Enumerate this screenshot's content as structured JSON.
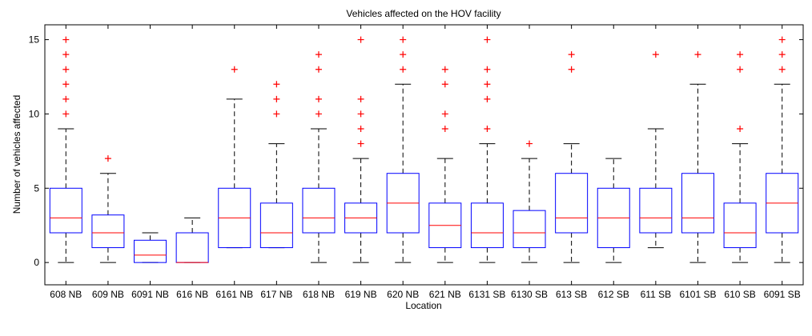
{
  "chart_data": {
    "type": "boxplot",
    "title": "Vehicles affected on the HOV facility",
    "xlabel": "Location",
    "ylabel": "Number of vehicles affected",
    "ylim": [
      -1.5,
      16
    ],
    "yticks": [
      0,
      5,
      10,
      15
    ],
    "grid": false,
    "colors": {
      "box": "#0000ff",
      "median": "#ff0000",
      "whisker": "#000000",
      "outlier": "#ff0000",
      "axis": "#000000"
    },
    "categories": [
      "608 NB",
      "609 NB",
      "6091 NB",
      "616 NB",
      "6161 NB",
      "617 NB",
      "618 NB",
      "619 NB",
      "620 NB",
      "621 NB",
      "6131 SB",
      "6130 SB",
      "613 SB",
      "612 SB",
      "611 SB",
      "6101 SB",
      "610 SB",
      "6091 SB"
    ],
    "boxes": [
      {
        "whisker_low": 0,
        "q1": 2,
        "median": 3,
        "q3": 5,
        "whisker_high": 9,
        "outliers": [
          10,
          11,
          12,
          13,
          14,
          15
        ]
      },
      {
        "whisker_low": 0,
        "q1": 1,
        "median": 2,
        "q3": 3.2,
        "whisker_high": 6,
        "outliers": [
          7
        ]
      },
      {
        "whisker_low": 0,
        "q1": 0,
        "median": 0.5,
        "q3": 1.5,
        "whisker_high": 2,
        "outliers": []
      },
      {
        "whisker_low": 0,
        "q1": 0,
        "median": 0,
        "q3": 2,
        "whisker_high": 3,
        "outliers": []
      },
      {
        "whisker_low": 1,
        "q1": 1,
        "median": 3,
        "q3": 5,
        "whisker_high": 11,
        "outliers": [
          13
        ]
      },
      {
        "whisker_low": 1,
        "q1": 1,
        "median": 2,
        "q3": 4,
        "whisker_high": 8,
        "outliers": [
          10,
          11,
          12
        ]
      },
      {
        "whisker_low": 0,
        "q1": 2,
        "median": 3,
        "q3": 5,
        "whisker_high": 9,
        "outliers": [
          10,
          11,
          13,
          14
        ]
      },
      {
        "whisker_low": 0,
        "q1": 2,
        "median": 3,
        "q3": 4,
        "whisker_high": 7,
        "outliers": [
          8,
          9,
          10,
          11,
          15
        ]
      },
      {
        "whisker_low": 0,
        "q1": 2,
        "median": 4,
        "q3": 6,
        "whisker_high": 12,
        "outliers": [
          13,
          14,
          15
        ]
      },
      {
        "whisker_low": 0,
        "q1": 1,
        "median": 2.5,
        "q3": 4,
        "whisker_high": 7,
        "outliers": [
          9,
          10,
          12,
          13
        ]
      },
      {
        "whisker_low": 0,
        "q1": 1,
        "median": 2,
        "q3": 4,
        "whisker_high": 8,
        "outliers": [
          9,
          11,
          12,
          13,
          15
        ]
      },
      {
        "whisker_low": 0,
        "q1": 1,
        "median": 2,
        "q3": 3.5,
        "whisker_high": 7,
        "outliers": [
          8
        ]
      },
      {
        "whisker_low": 0,
        "q1": 2,
        "median": 3,
        "q3": 6,
        "whisker_high": 8,
        "outliers": [
          13,
          14
        ]
      },
      {
        "whisker_low": 0,
        "q1": 1,
        "median": 3,
        "q3": 5,
        "whisker_high": 7,
        "outliers": []
      },
      {
        "whisker_low": 1,
        "q1": 2,
        "median": 3,
        "q3": 5,
        "whisker_high": 9,
        "outliers": [
          14
        ]
      },
      {
        "whisker_low": 0,
        "q1": 2,
        "median": 3,
        "q3": 6,
        "whisker_high": 12,
        "outliers": [
          14
        ]
      },
      {
        "whisker_low": 0,
        "q1": 1,
        "median": 2,
        "q3": 4,
        "whisker_high": 8,
        "outliers": [
          9,
          13,
          14
        ]
      },
      {
        "whisker_low": 0,
        "q1": 2,
        "median": 4,
        "q3": 6,
        "whisker_high": 12,
        "outliers": [
          13,
          14,
          15
        ]
      }
    ]
  }
}
